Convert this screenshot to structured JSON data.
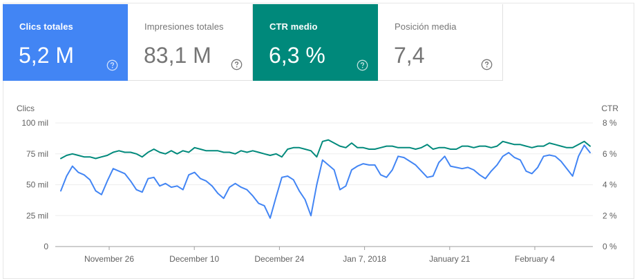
{
  "metrics": [
    {
      "label": "Clics totales",
      "value": "5,2 M",
      "color": "#4285f4",
      "active": true,
      "icon": "help-circle-icon"
    },
    {
      "label": "Impresiones totales",
      "value": "83,1 M",
      "color": "#ffffff",
      "active": false,
      "icon": "help-circle-icon"
    },
    {
      "label": "CTR medio",
      "value": "6,3 %",
      "color": "#00897b",
      "active": true,
      "icon": "help-circle-icon"
    },
    {
      "label": "Posición media",
      "value": "7,4",
      "color": "#ffffff",
      "active": false,
      "icon": "help-circle-icon"
    }
  ],
  "chart_data": {
    "type": "line",
    "title": "",
    "xlabel": "",
    "x_tick_labels": [
      "November 26",
      "December 10",
      "December 24",
      "Jan 7, 2018",
      "January 21",
      "February 4"
    ],
    "y_left": {
      "label": "Clics",
      "ticks": [
        "0",
        "25 mil",
        "50 mil",
        "75 mil",
        "100 mil"
      ],
      "range": [
        0,
        100
      ]
    },
    "y_right": {
      "label": "CTR",
      "ticks": [
        "0 %",
        "2 %",
        "4 %",
        "6 %",
        "8 %"
      ],
      "range": [
        0,
        8
      ]
    },
    "grid": true,
    "legend": "none",
    "series": [
      {
        "name": "Clics",
        "axis": "left",
        "color": "#4285f4",
        "values": [
          45,
          57,
          65,
          60,
          58,
          54,
          45,
          42,
          53,
          63,
          61,
          59,
          53,
          46,
          44,
          55,
          56,
          49,
          51,
          48,
          49,
          46,
          58,
          60,
          55,
          53,
          49,
          43,
          39,
          48,
          51,
          48,
          46,
          41,
          35,
          33,
          23,
          40,
          56,
          57,
          54,
          45,
          38,
          25,
          50,
          70,
          66,
          62,
          46,
          49,
          62,
          65,
          67,
          66,
          66,
          58,
          56,
          62,
          73,
          72,
          69,
          66,
          61,
          56,
          57,
          68,
          73,
          65,
          64,
          63,
          64,
          62,
          58,
          55,
          61,
          66,
          73,
          76,
          72,
          70,
          61,
          59,
          64,
          73,
          74,
          73,
          69,
          63,
          57,
          73,
          82,
          76
        ],
        "unit": "mil"
      },
      {
        "name": "CTR",
        "axis": "right",
        "color": "#00897b",
        "values": [
          5.7,
          5.9,
          6.0,
          5.9,
          5.8,
          5.8,
          5.7,
          5.8,
          5.9,
          6.1,
          6.2,
          6.1,
          6.1,
          6.0,
          5.8,
          6.1,
          6.3,
          6.1,
          6.0,
          6.2,
          6.0,
          6.2,
          6.1,
          6.4,
          6.3,
          6.2,
          6.2,
          6.2,
          6.1,
          6.1,
          6.0,
          6.2,
          6.1,
          6.2,
          6.1,
          6.0,
          5.9,
          6.0,
          5.8,
          6.3,
          6.4,
          6.4,
          6.3,
          6.2,
          5.8,
          6.8,
          6.9,
          6.7,
          6.5,
          6.4,
          6.7,
          6.4,
          6.4,
          6.3,
          6.3,
          6.4,
          6.5,
          6.5,
          6.4,
          6.4,
          6.4,
          6.3,
          6.4,
          6.6,
          6.3,
          6.4,
          6.4,
          6.3,
          6.3,
          6.5,
          6.5,
          6.4,
          6.5,
          6.5,
          6.4,
          6.5,
          6.8,
          6.7,
          6.6,
          6.6,
          6.5,
          6.4,
          6.5,
          6.5,
          6.7,
          6.6,
          6.5,
          6.4,
          6.4,
          6.6,
          6.8,
          6.5
        ],
        "unit": "%"
      }
    ]
  }
}
